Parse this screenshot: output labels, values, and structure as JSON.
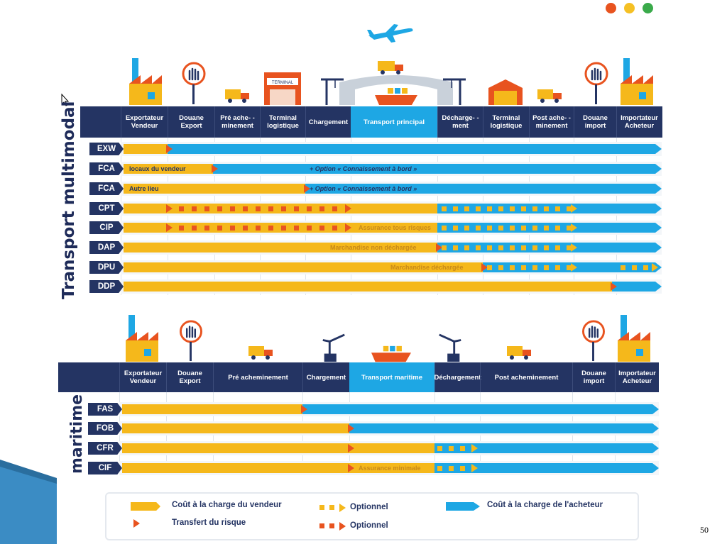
{
  "colors": {
    "seller": "#f5b81b",
    "buyer": "#1ea7e4",
    "risk": "#e8531f",
    "header": "#243463"
  },
  "window_dots": [
    "#e8531f",
    "#f5c024",
    "#3aaa4a"
  ],
  "multimodal": {
    "title": "Transport multimodal",
    "columns": [
      "Exportateur Vendeur",
      "Douane Export",
      "Pré ache- -minement",
      "Terminal logistique",
      "Chargement",
      "Transport principal",
      "Décharge- -ment",
      "Terminal logistique",
      "Post ache- -minement",
      "Douane import",
      "Importateur Acheteur"
    ],
    "rows": [
      {
        "code": "EXW",
        "label": "",
        "note": ""
      },
      {
        "code": "FCA",
        "label": "locaux du vendeur",
        "note": "+ Option « Connaissement à bord »"
      },
      {
        "code": "FCA",
        "label": "Autre lieu",
        "note": "+ Option « Connaissement à bord »"
      },
      {
        "code": "CPT",
        "label": "",
        "note": ""
      },
      {
        "code": "CIP",
        "label": "",
        "note": "Assurance tous risques"
      },
      {
        "code": "DAP",
        "label": "",
        "note": "Marchandise non déchargée"
      },
      {
        "code": "DPU",
        "label": "",
        "note": "Marchandise déchargée"
      },
      {
        "code": "DDP",
        "label": "",
        "note": ""
      }
    ]
  },
  "maritime": {
    "title": "maritime",
    "columns": [
      "Exportateur Vendeur",
      "Douane Export",
      "Pré acheminement",
      "Chargement",
      "Transport maritime",
      "Déchargement",
      "Post acheminement",
      "Douane import",
      "Importateur Acheteur"
    ],
    "rows": [
      {
        "code": "FAS",
        "note": ""
      },
      {
        "code": "FOB",
        "note": ""
      },
      {
        "code": "CFR",
        "note": ""
      },
      {
        "code": "CIF",
        "note": "Assurance minimale"
      }
    ]
  },
  "legend": {
    "seller_cost": "Coût à la charge du vendeur",
    "risk_transfer": "Transfert du risque",
    "optional_yellow": "Optionnel",
    "optional_red": "Optionnel",
    "buyer_cost": "Coût à la charge de l'acheteur"
  },
  "icons": {
    "terminal_sign": "TERMINAL"
  },
  "page_number": "50"
}
